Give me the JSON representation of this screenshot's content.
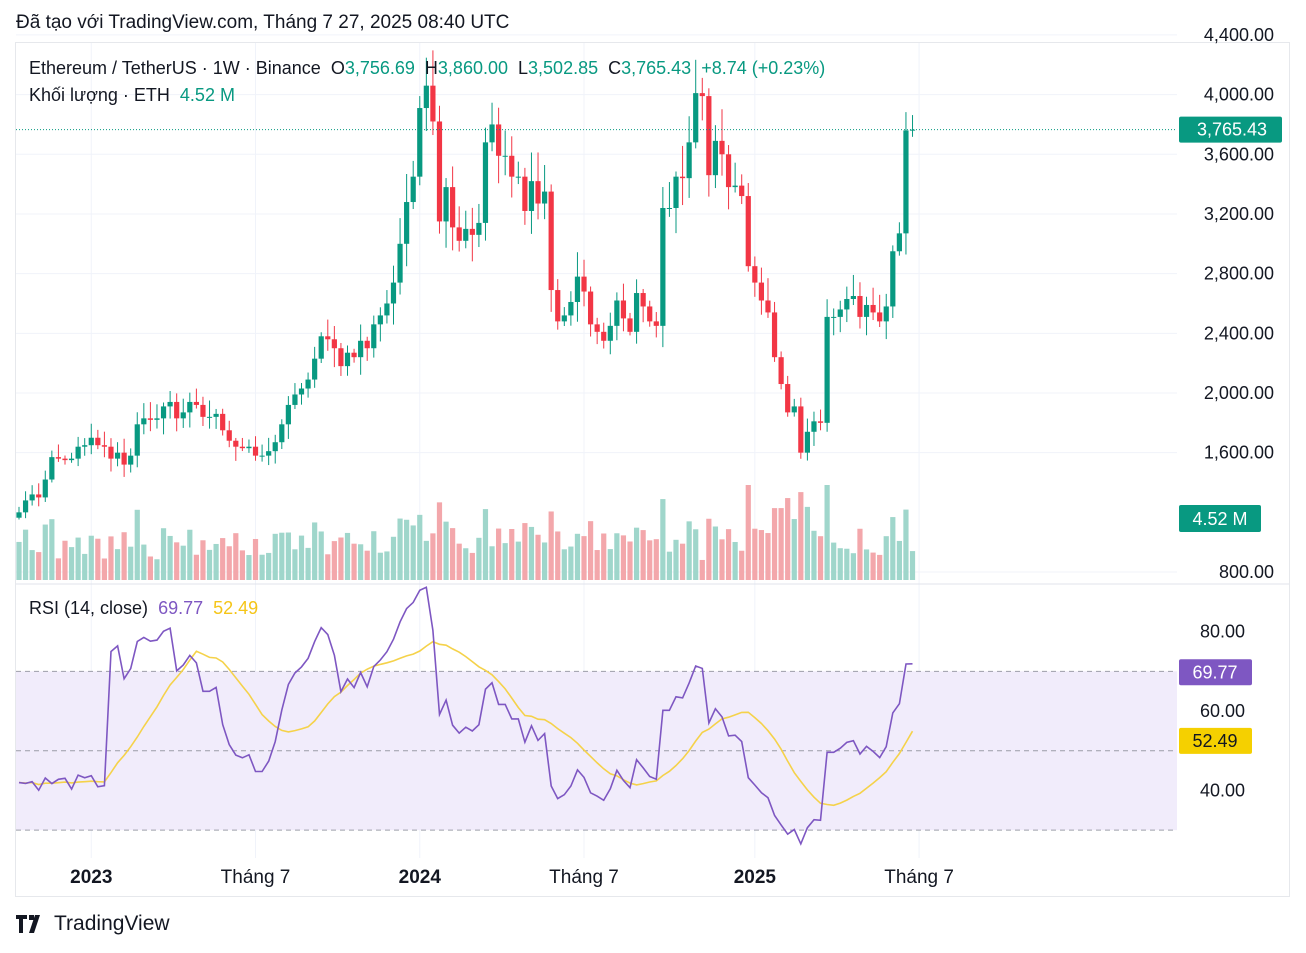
{
  "caption": "Đã tạo với TradingView.com, Tháng 7 27, 2025 08:40 UTC",
  "legend": {
    "symbol": "Ethereum / TetherUS · 1W · Binance",
    "o_label": "O",
    "o_value": "3,756.69",
    "h_label": "H",
    "h_value": "3,860.00",
    "l_label": "L",
    "l_value": "3,502.85",
    "c_label": "C",
    "c_value": "3,765.43",
    "change": "+8.74 (+0.23%)",
    "volume_label": "Khối lượng · ETH",
    "volume_value": "4.52 M",
    "rsi_label": "RSI (14, close)",
    "rsi_value": "69.77",
    "rsi_ma_value": "52.49"
  },
  "brand": "TradingView",
  "colors": {
    "up": "#089981",
    "down": "#f23645",
    "vol_up": "#9fd6cb",
    "vol_down": "#f3a7ab",
    "rsi": "#7e57c2",
    "rsi_ma": "#f5d24a",
    "rsi_band": "#f1ecfb",
    "grid": "#f0f3fa"
  },
  "chart_data": [
    {
      "type": "candlestick",
      "title": "Ethereum / TetherUS · 1W · Binance",
      "x_tick_labels": [
        "2023",
        "Tháng 7",
        "2024",
        "Tháng 7",
        "2025",
        "Tháng 7"
      ],
      "x_tick_bold": [
        true,
        false,
        true,
        false,
        true,
        false
      ],
      "x_tick_index": [
        11,
        36,
        61,
        86,
        112,
        137
      ],
      "y_tick_labels": [
        "4,400.00",
        "4,000.00",
        "3,600.00",
        "3,200.00",
        "2,800.00",
        "2,400.00",
        "2,000.00",
        "1,600.00",
        "800.00"
      ],
      "y_ticks": [
        4400,
        4000,
        3600,
        3200,
        2800,
        2400,
        2000,
        1600,
        800
      ],
      "ylim": [
        780,
        4480
      ],
      "grid": true,
      "last_price_label": "3,765.43",
      "last_price": 3765.43,
      "last_volume_label": "4.52 M",
      "closes": [
        1200,
        1280,
        1320,
        1300,
        1420,
        1570,
        1560,
        1550,
        1560,
        1640,
        1650,
        1700,
        1650,
        1640,
        1560,
        1600,
        1520,
        1580,
        1790,
        1830,
        1820,
        1830,
        1910,
        1940,
        1830,
        1870,
        1940,
        1920,
        1840,
        1840,
        1860,
        1750,
        1680,
        1640,
        1630,
        1640,
        1580,
        1580,
        1610,
        1670,
        1790,
        1920,
        1990,
        2030,
        2090,
        2230,
        2380,
        2360,
        2300,
        2180,
        2270,
        2240,
        2350,
        2300,
        2460,
        2520,
        2600,
        2740,
        3000,
        3280,
        3450,
        3910,
        4060,
        3820,
        3150,
        3380,
        3110,
        3020,
        3100,
        3060,
        3140,
        3680,
        3800,
        3590,
        3590,
        3450,
        3450,
        3220,
        3420,
        3270,
        3350,
        2690,
        2480,
        2520,
        2610,
        2780,
        2680,
        2460,
        2410,
        2350,
        2450,
        2620,
        2500,
        2410,
        2670,
        2580,
        2480,
        2450,
        3240,
        3240,
        3450,
        3440,
        3680,
        4010,
        3990,
        3460,
        3690,
        3600,
        3380,
        3390,
        3320,
        2850,
        2740,
        2620,
        2540,
        2240,
        2060,
        1870,
        1910,
        1600,
        1740,
        1810,
        1800,
        2510,
        2510,
        2560,
        2630,
        2650,
        2510,
        2590,
        2540,
        2480,
        2580,
        2950,
        3070,
        3760,
        3765
      ]
    },
    {
      "type": "bar",
      "title": "Khối lượng · ETH",
      "current_value": "4.52 M"
    },
    {
      "type": "line",
      "title": "RSI (14, close)",
      "y_tick_labels": [
        "80.00",
        "60.00",
        "40.00"
      ],
      "y_ticks": [
        80,
        60,
        40
      ],
      "ylim": [
        25,
        92
      ],
      "bands": [
        70,
        50,
        30
      ],
      "series": [
        {
          "name": "RSI",
          "label": "69.77",
          "last": 69.77
        },
        {
          "name": "MA",
          "label": "52.49",
          "last": 52.49
        }
      ]
    }
  ]
}
